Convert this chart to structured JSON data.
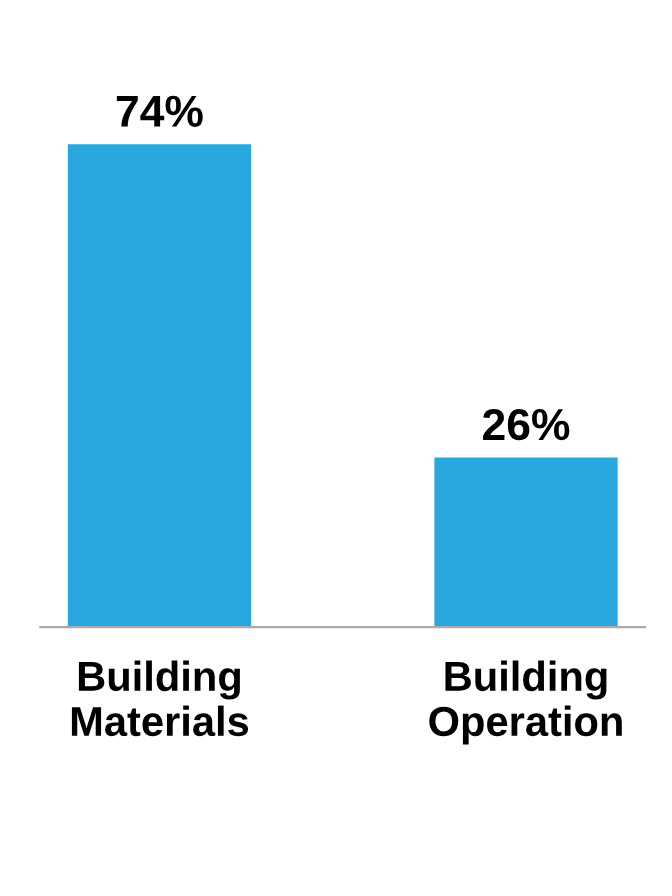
{
  "chart_data": {
    "type": "bar",
    "categories": [
      "Building\nMaterials",
      "Building\nOperation"
    ],
    "values": [
      74,
      26
    ],
    "color": "#29a8e0",
    "value_labels": [
      "74%",
      "26%"
    ]
  }
}
